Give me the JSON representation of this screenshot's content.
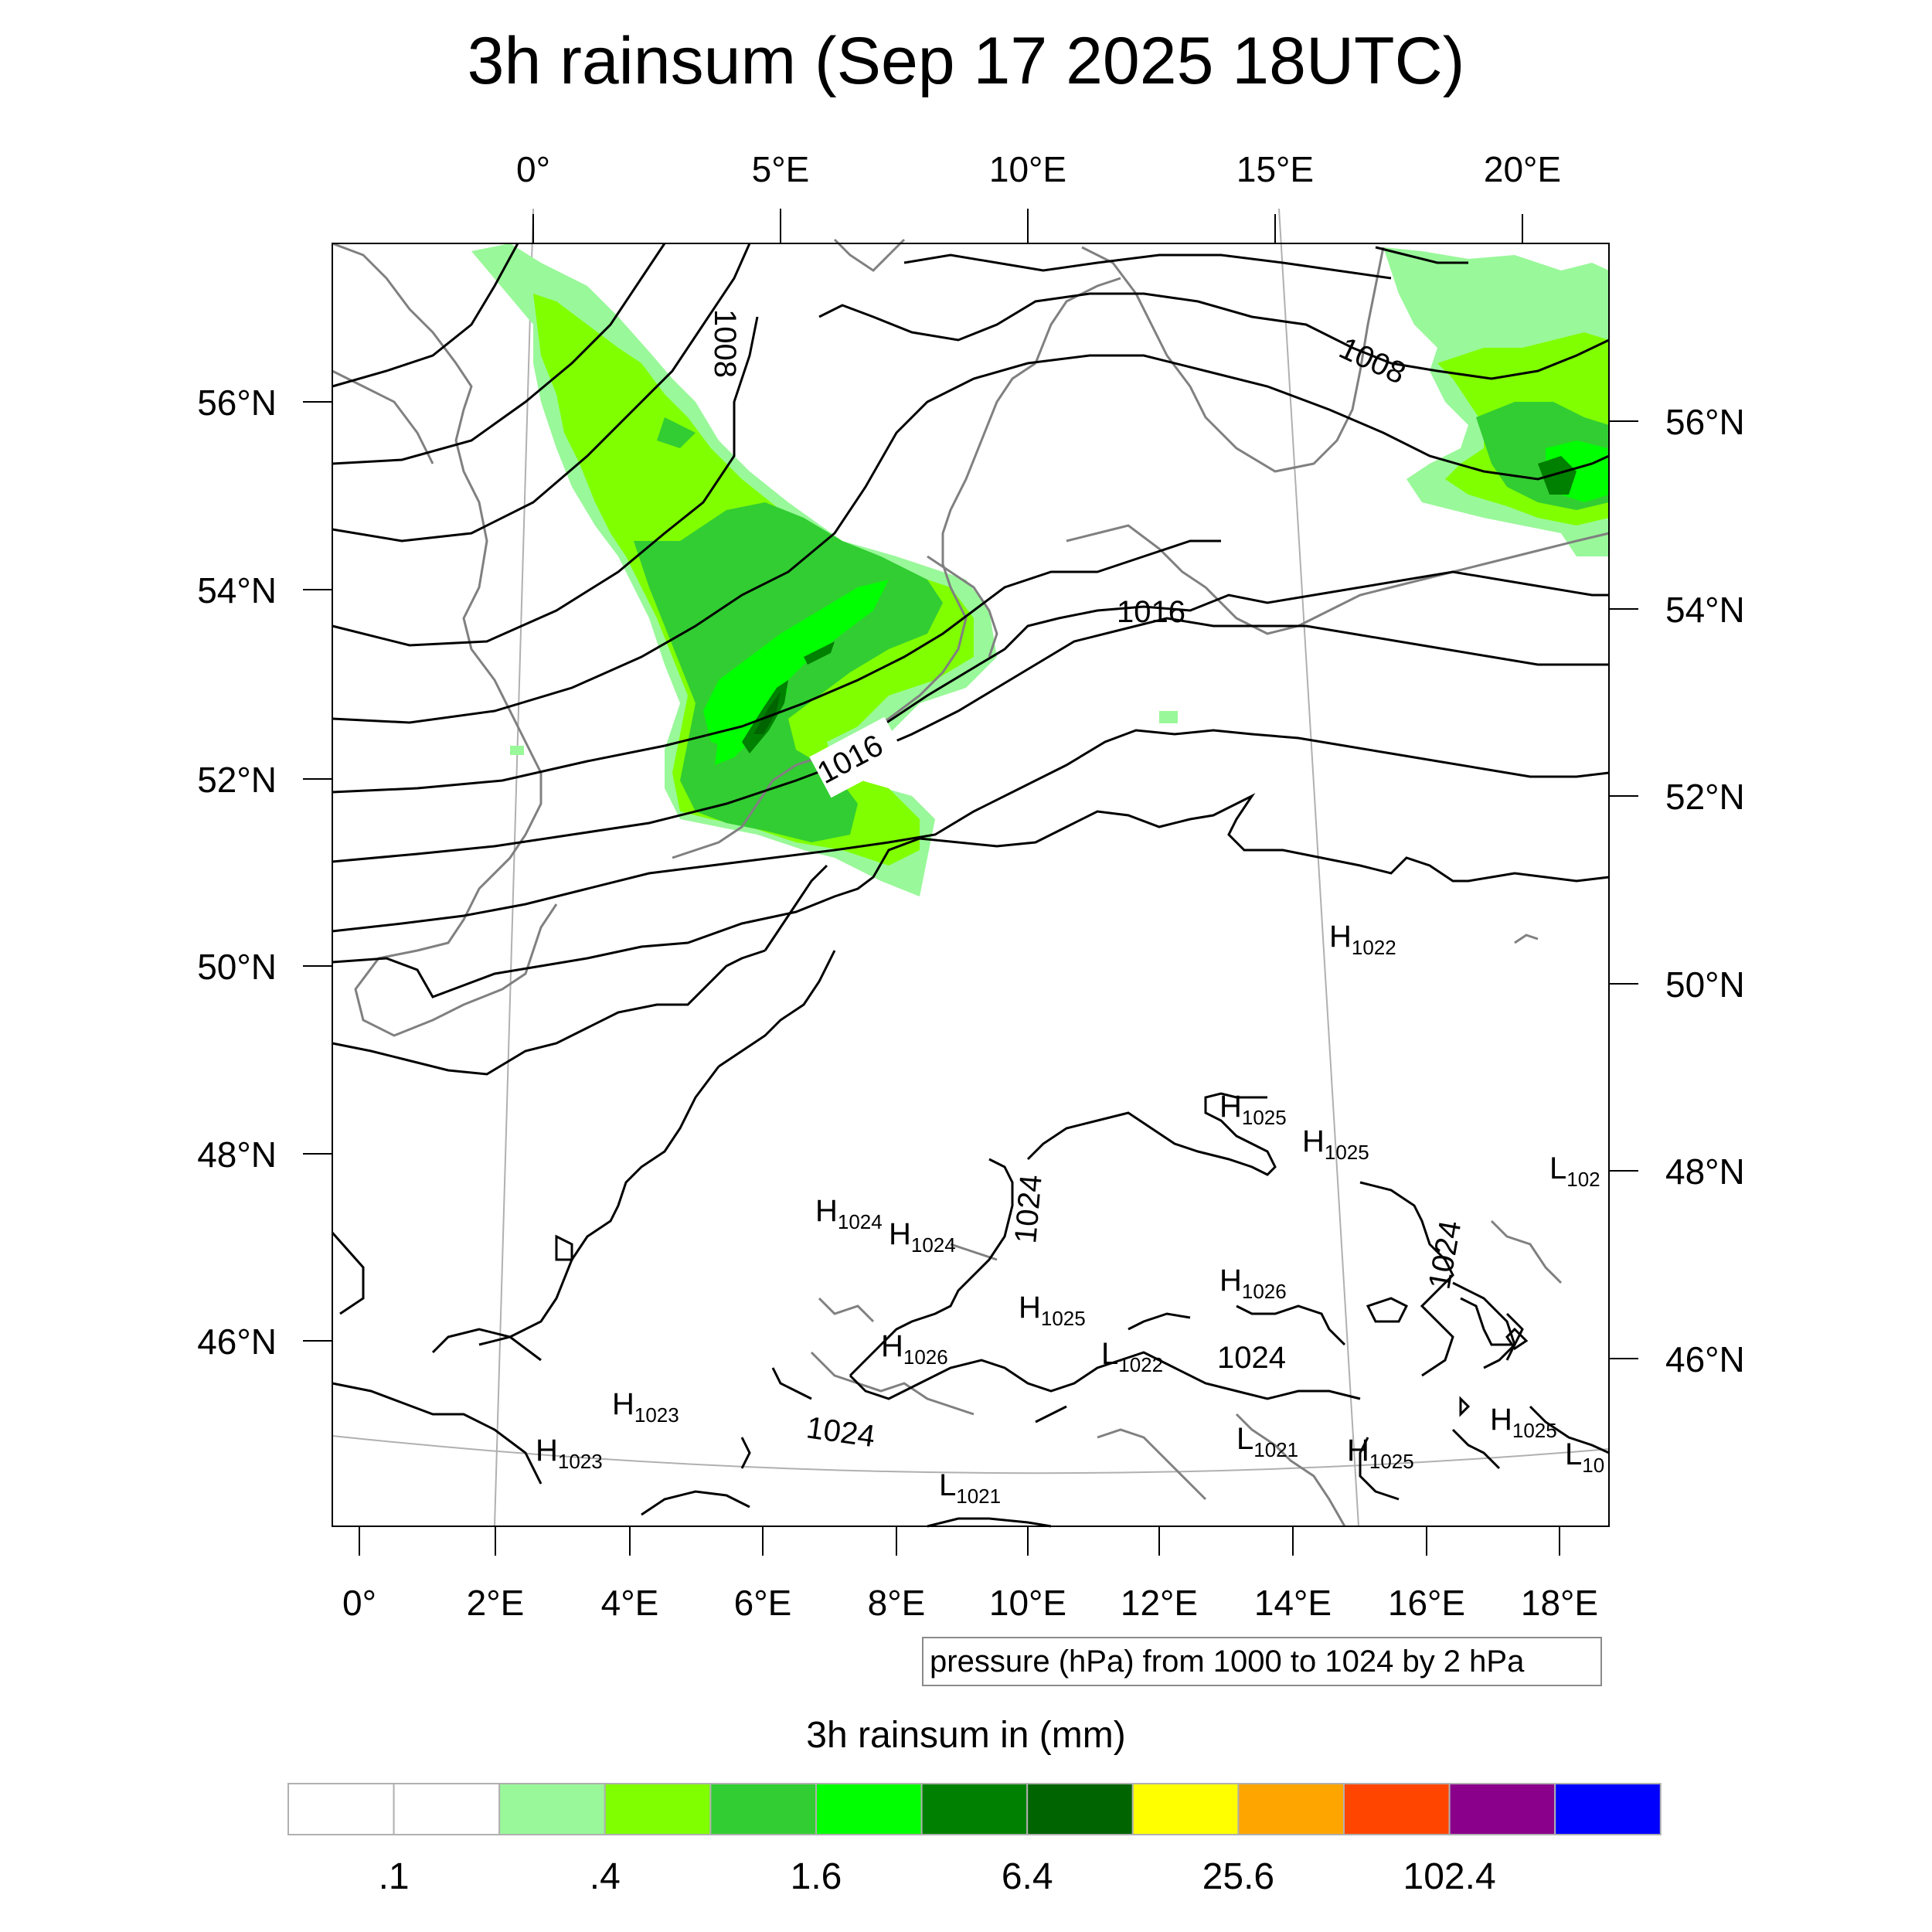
{
  "title": "3h rainsum (Sep 17 2025 18UTC)",
  "map": {
    "top_lon_labels": [
      "0°",
      "5°E",
      "10°E",
      "15°E",
      "20°E"
    ],
    "bottom_lon_labels": [
      "0°",
      "2°E",
      "4°E",
      "6°E",
      "8°E",
      "10°E",
      "12°E",
      "14°E",
      "16°E",
      "18°E"
    ],
    "left_lat_labels": [
      "56°N",
      "54°N",
      "52°N",
      "50°N",
      "48°N",
      "46°N"
    ],
    "right_lat_labels": [
      "56°N",
      "54°N",
      "52°N",
      "50°N",
      "48°N",
      "46°N"
    ],
    "contour_labels": [
      "1008",
      "1008",
      "1016",
      "1016",
      "1024",
      "1024",
      "1024",
      "1024"
    ],
    "pressure_centers": [
      {
        "type": "H",
        "value": "1022"
      },
      {
        "type": "H",
        "value": "1025"
      },
      {
        "type": "H",
        "value": "1025"
      },
      {
        "type": "L",
        "value": "102"
      },
      {
        "type": "H",
        "value": "1024"
      },
      {
        "type": "H",
        "value": "1024"
      },
      {
        "type": "H",
        "value": "1026"
      },
      {
        "type": "H",
        "value": "1025"
      },
      {
        "type": "H",
        "value": "1026"
      },
      {
        "type": "L",
        "value": "1022"
      },
      {
        "type": "H",
        "value": "1023"
      },
      {
        "type": "H",
        "value": "1023"
      },
      {
        "type": "L",
        "value": "1021"
      },
      {
        "type": "L",
        "value": "1021"
      },
      {
        "type": "H",
        "value": "1025"
      },
      {
        "type": "H",
        "value": "1025"
      },
      {
        "type": "L",
        "value": "10"
      }
    ],
    "info_text": "pressure (hPa) from 1000 to 1024 by 2 hPa",
    "rain_colors": {
      "light": "#99f899",
      "lime": "#80ff00",
      "medium": "#32cd32",
      "bright": "#00ff00",
      "dark": "#008000",
      "darkest": "#006400"
    },
    "contour_color": "#000000",
    "coast_color": "#808080"
  },
  "colorbar": {
    "title": "3h rainsum in (mm)",
    "colors": [
      "#ffffff",
      "#ffffff",
      "#99f899",
      "#80ff00",
      "#32cd32",
      "#00ff00",
      "#008000",
      "#006400",
      "#ffff00",
      "#ffa500",
      "#ff4500",
      "#8b008b",
      "#0000ff"
    ],
    "labels": [
      ".1",
      ".4",
      "1.6",
      "6.4",
      "25.6",
      "102.4"
    ]
  }
}
